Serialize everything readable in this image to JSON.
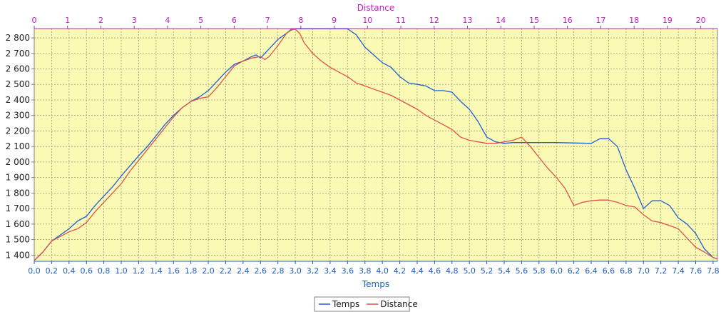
{
  "chart_data": {
    "type": "line",
    "title": "",
    "xlabel": "Temps",
    "x2label": "Distance",
    "ylabel": "",
    "xlim": [
      0,
      7.85
    ],
    "x2lim": [
      0,
      20.5
    ],
    "ylim": [
      1360,
      2860
    ],
    "grid": true,
    "legend_position": "bottom-center",
    "plot_background": "#fafab4",
    "x_ticks": [
      "0,0",
      "0,2",
      "0,4",
      "0,6",
      "0,8",
      "1,0",
      "1,2",
      "1,4",
      "1,6",
      "1,8",
      "2,0",
      "2,2",
      "2,4",
      "2,6",
      "2,8",
      "3,0",
      "3,2",
      "3,4",
      "3,6",
      "3,8",
      "4,0",
      "4,2",
      "4,4",
      "4,6",
      "4,8",
      "5,0",
      "5,2",
      "5,4",
      "5,6",
      "5,8",
      "6,0",
      "6,2",
      "6,4",
      "6,6",
      "6,8",
      "7,0",
      "7,2",
      "7,4",
      "7,6",
      "7,8"
    ],
    "x2_ticks": [
      "0",
      "1",
      "2",
      "3",
      "4",
      "5",
      "6",
      "7",
      "8",
      "9",
      "10",
      "11",
      "12",
      "13",
      "14",
      "15",
      "16",
      "17",
      "18",
      "19",
      "20"
    ],
    "y_ticks": [
      "1 400",
      "1 500",
      "1 600",
      "1 700",
      "1 800",
      "1 900",
      "2 000",
      "2 100",
      "2 200",
      "2 300",
      "2 400",
      "2 500",
      "2 600",
      "2 700",
      "2 800"
    ],
    "series": [
      {
        "name": "Temps",
        "color": "#1f5fd6",
        "x": [
          0.0,
          0.1,
          0.2,
          0.3,
          0.4,
          0.5,
          0.6,
          0.7,
          0.8,
          0.9,
          1.0,
          1.1,
          1.2,
          1.3,
          1.4,
          1.5,
          1.6,
          1.7,
          1.8,
          1.9,
          2.0,
          2.1,
          2.2,
          2.3,
          2.4,
          2.5,
          2.55,
          2.6,
          2.7,
          2.8,
          2.9,
          2.95,
          3.0,
          3.2,
          3.4,
          3.6,
          3.7,
          3.8,
          3.9,
          4.0,
          4.1,
          4.2,
          4.3,
          4.4,
          4.5,
          4.6,
          4.7,
          4.8,
          4.9,
          5.0,
          5.1,
          5.2,
          5.3,
          5.4,
          5.5,
          5.6,
          6.0,
          6.4,
          6.5,
          6.6,
          6.7,
          6.8,
          6.9,
          7.0,
          7.1,
          7.2,
          7.3,
          7.4,
          7.5,
          7.6,
          7.7,
          7.8,
          7.85
        ],
        "y": [
          1365,
          1420,
          1490,
          1530,
          1570,
          1620,
          1650,
          1720,
          1780,
          1840,
          1910,
          1975,
          2040,
          2100,
          2170,
          2240,
          2300,
          2350,
          2390,
          2420,
          2460,
          2520,
          2580,
          2630,
          2650,
          2680,
          2690,
          2670,
          2730,
          2790,
          2830,
          2850,
          2858,
          2858,
          2858,
          2858,
          2820,
          2740,
          2690,
          2640,
          2610,
          2550,
          2510,
          2500,
          2490,
          2460,
          2460,
          2450,
          2390,
          2340,
          2260,
          2160,
          2130,
          2120,
          2125,
          2125,
          2125,
          2120,
          2150,
          2150,
          2100,
          1950,
          1830,
          1700,
          1750,
          1750,
          1720,
          1640,
          1600,
          1540,
          1440,
          1385,
          1375
        ]
      },
      {
        "name": "Distance",
        "color": "#e05050",
        "x": [
          0.0,
          0.1,
          0.2,
          0.3,
          0.4,
          0.5,
          0.6,
          0.7,
          0.8,
          0.9,
          1.0,
          1.1,
          1.2,
          1.3,
          1.4,
          1.5,
          1.6,
          1.7,
          1.8,
          1.9,
          2.0,
          2.1,
          2.2,
          2.3,
          2.4,
          2.5,
          2.6,
          2.65,
          2.7,
          2.8,
          2.9,
          2.95,
          3.0,
          3.05,
          3.1,
          3.2,
          3.3,
          3.4,
          3.5,
          3.6,
          3.7,
          3.8,
          3.9,
          4.0,
          4.1,
          4.2,
          4.3,
          4.4,
          4.5,
          4.6,
          4.7,
          4.8,
          4.9,
          5.0,
          5.1,
          5.2,
          5.3,
          5.4,
          5.5,
          5.6,
          5.7,
          5.8,
          5.9,
          6.0,
          6.1,
          6.2,
          6.3,
          6.4,
          6.5,
          6.6,
          6.7,
          6.8,
          6.9,
          7.0,
          7.1,
          7.2,
          7.3,
          7.4,
          7.5,
          7.6,
          7.7,
          7.8,
          7.85
        ],
        "y": [
          1365,
          1420,
          1490,
          1520,
          1550,
          1570,
          1610,
          1680,
          1740,
          1800,
          1860,
          1940,
          2010,
          2080,
          2150,
          2220,
          2290,
          2350,
          2390,
          2410,
          2420,
          2480,
          2550,
          2620,
          2650,
          2670,
          2680,
          2660,
          2680,
          2750,
          2830,
          2855,
          2855,
          2830,
          2770,
          2700,
          2650,
          2610,
          2580,
          2550,
          2510,
          2490,
          2470,
          2450,
          2430,
          2400,
          2370,
          2340,
          2300,
          2270,
          2240,
          2210,
          2160,
          2140,
          2130,
          2120,
          2120,
          2130,
          2140,
          2160,
          2100,
          2030,
          1960,
          1900,
          1830,
          1720,
          1740,
          1750,
          1755,
          1755,
          1740,
          1720,
          1710,
          1660,
          1620,
          1610,
          1590,
          1570,
          1510,
          1450,
          1420,
          1385,
          1375
        ]
      }
    ]
  }
}
